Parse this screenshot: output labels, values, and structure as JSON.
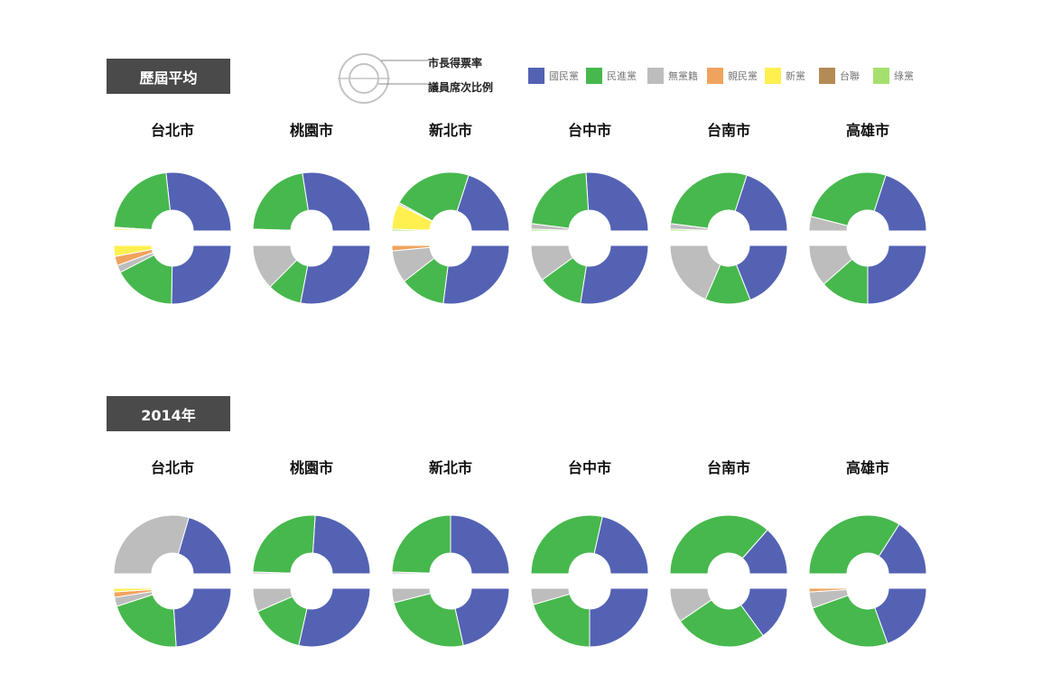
{
  "section_headers": {
    "average": "歷屆平均",
    "year2014": "2014年"
  },
  "ring_legend": {
    "mayor": "市長得票率",
    "council": "議員席次比例"
  },
  "parties": [
    {
      "name": "國民黨",
      "color": "#5462b4"
    },
    {
      "name": "民進黨",
      "color": "#47b84d"
    },
    {
      "name": "無黨籍",
      "color": "#bdbdbd"
    },
    {
      "name": "親民黨",
      "color": "#f0a35e"
    },
    {
      "name": "新黨",
      "color": "#fff050"
    },
    {
      "name": "台聯",
      "color": "#b48a55"
    },
    {
      "name": "綠黨",
      "color": "#a5e06e"
    }
  ],
  "chart_data": [
    {
      "type": "pie",
      "title": "歷屆平均",
      "top_half": "市長得票率",
      "bottom_half": "議員席次比例",
      "categories": [
        "國民黨",
        "民進黨",
        "無黨籍",
        "親民黨",
        "新黨",
        "台聯",
        "綠黨"
      ],
      "cities": [
        {
          "name": "台北市",
          "mayor": {
            "國民黨": 53,
            "民進黨": 44,
            "無黨籍": 0.5,
            "親民黨": 0,
            "新黨": 1,
            "台聯": 0,
            "綠黨": 0.5
          },
          "council": {
            "國民黨": 50,
            "民進黨": 34,
            "無黨籍": 4,
            "親民黨": 5,
            "新黨": 6,
            "台聯": 0,
            "綠黨": 0
          }
        },
        {
          "name": "桃園市",
          "mayor": {
            "國民黨": 55,
            "民進黨": 44,
            "無黨籍": 0.5,
            "親民黨": 0,
            "新黨": 0,
            "台聯": 0,
            "綠黨": 0.5
          },
          "council": {
            "國民黨": 56,
            "民進黨": 19,
            "無黨籍": 25,
            "親民黨": 0,
            "新黨": 0,
            "台聯": 0,
            "綠黨": 0
          }
        },
        {
          "name": "新北市",
          "mayor": {
            "國民黨": 40,
            "民進黨": 44,
            "無黨籍": 1,
            "親民黨": 0,
            "新黨": 14,
            "台聯": 0,
            "綠黨": 1
          },
          "council": {
            "國民黨": 54,
            "民進黨": 25,
            "無黨籍": 18,
            "親民黨": 3,
            "新黨": 0,
            "台聯": 0,
            "綠黨": 0
          }
        },
        {
          "name": "台中市",
          "mayor": {
            "國民黨": 52,
            "民進黨": 44,
            "無黨籍": 3,
            "親民黨": 0,
            "新黨": 0,
            "台聯": 0,
            "綠黨": 1
          },
          "council": {
            "國民黨": 55,
            "民進黨": 25,
            "無黨籍": 20,
            "親民黨": 0,
            "新黨": 0,
            "台聯": 0,
            "綠黨": 0
          }
        },
        {
          "name": "台南市",
          "mayor": {
            "國民黨": 40,
            "民進黨": 56,
            "無黨籍": 3,
            "親民黨": 0,
            "新黨": 0,
            "台聯": 0,
            "綠黨": 1
          },
          "council": {
            "國民黨": 38,
            "民進黨": 25,
            "無黨籍": 37,
            "親民黨": 0,
            "新黨": 0,
            "台聯": 0,
            "綠黨": 0
          }
        },
        {
          "name": "高雄市",
          "mayor": {
            "國民黨": 40,
            "民進黨": 52,
            "無黨籍": 8,
            "親民黨": 0,
            "新黨": 0,
            "台聯": 0,
            "綠黨": 0
          },
          "council": {
            "國民黨": 50,
            "民進黨": 27,
            "無黨籍": 23,
            "親民黨": 0,
            "新黨": 0,
            "台聯": 0,
            "綠黨": 0
          }
        }
      ]
    },
    {
      "type": "pie",
      "title": "2014年",
      "top_half": "市長得票率",
      "bottom_half": "議員席次比例",
      "categories": [
        "國民黨",
        "民進黨",
        "無黨籍",
        "親民黨",
        "新黨",
        "台聯",
        "綠黨"
      ],
      "cities": [
        {
          "name": "台北市",
          "mayor": {
            "國民黨": 41,
            "民進黨": 0,
            "無黨籍": 59,
            "親民黨": 0,
            "新黨": 0,
            "台聯": 0,
            "綠黨": 0
          },
          "council": {
            "國民黨": 48,
            "民進黨": 42,
            "無黨籍": 5,
            "親民黨": 3,
            "新黨": 2,
            "台聯": 0,
            "綠黨": 0
          }
        },
        {
          "name": "桃園市",
          "mayor": {
            "國民黨": 48,
            "民進黨": 51,
            "無黨籍": 1,
            "親民黨": 0,
            "新黨": 0,
            "台聯": 0,
            "綠黨": 0
          },
          "council": {
            "國民黨": 57,
            "民進黨": 30,
            "無黨籍": 13,
            "親民黨": 0,
            "新黨": 0,
            "台聯": 0,
            "綠黨": 0
          }
        },
        {
          "name": "新北市",
          "mayor": {
            "國民黨": 50,
            "民進黨": 49,
            "無黨籍": 1,
            "親民黨": 0,
            "新黨": 0,
            "台聯": 0,
            "綠黨": 0
          },
          "council": {
            "國民黨": 43,
            "民進黨": 49,
            "無黨籍": 8,
            "親民黨": 0,
            "新黨": 0,
            "台聯": 0,
            "綠黨": 0
          }
        },
        {
          "name": "台中市",
          "mayor": {
            "國民黨": 43,
            "民進黨": 57,
            "無黨籍": 0,
            "親民黨": 0,
            "新黨": 0,
            "台聯": 0,
            "綠黨": 0
          },
          "council": {
            "國民黨": 50,
            "民進黨": 41,
            "無黨籍": 9,
            "親民黨": 0,
            "新黨": 0,
            "台聯": 0,
            "綠黨": 0
          }
        },
        {
          "name": "台南市",
          "mayor": {
            "國民黨": 27,
            "民進黨": 73,
            "無黨籍": 0,
            "親民黨": 0,
            "新黨": 0,
            "台聯": 0,
            "綠黨": 0
          },
          "council": {
            "國民黨": 30,
            "民進黨": 51,
            "無黨籍": 19,
            "親民黨": 0,
            "新黨": 0,
            "台聯": 0,
            "綠黨": 0
          }
        },
        {
          "name": "高雄市",
          "mayor": {
            "國民黨": 32,
            "民進黨": 68,
            "無黨籍": 0,
            "親民黨": 0,
            "新黨": 0,
            "台聯": 0,
            "綠黨": 0
          },
          "council": {
            "國民黨": 39,
            "民進黨": 50,
            "無黨籍": 9,
            "親民黨": 2,
            "新黨": 0,
            "台聯": 0,
            "綠黨": 0
          }
        }
      ]
    }
  ]
}
